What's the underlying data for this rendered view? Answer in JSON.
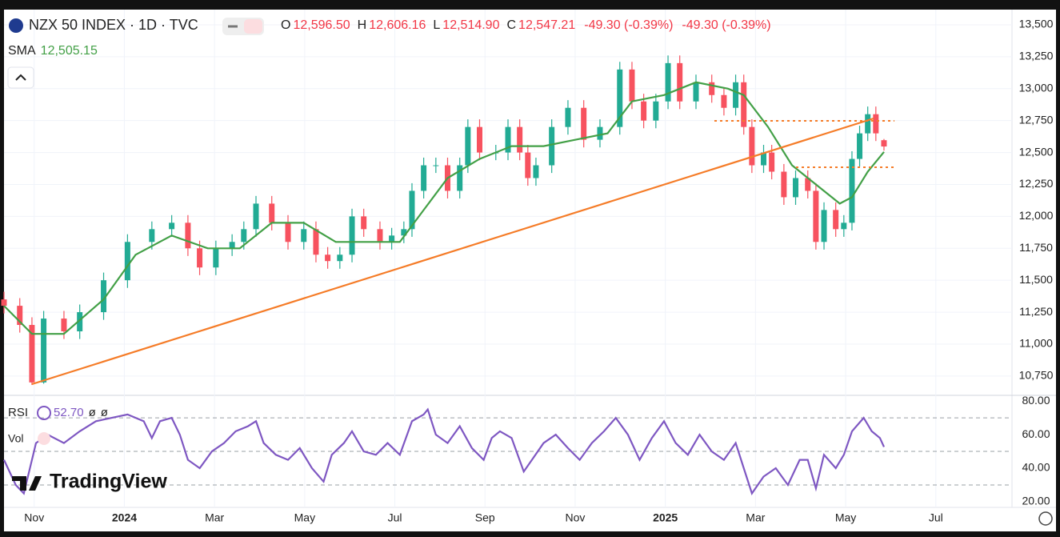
{
  "brand": "TradingView",
  "volume_label": "Vol",
  "chart_data": [
    {
      "type": "candlestick",
      "title": "NZX 50 INDEX · 1D · TVC",
      "legend": {
        "open_label": "O",
        "open": "12,596.50",
        "high_label": "H",
        "high": "12,606.16",
        "low_label": "L",
        "low": "12,514.90",
        "close_label": "C",
        "close": "12,547.21",
        "change": "-49.30 (-0.39%)",
        "change_2": "-49.30 (-0.39%)"
      },
      "up_color": "#22ab94",
      "down_color": "#f7525f",
      "grid": true,
      "x": [
        -0.67,
        -0.32,
        -0.05,
        0.21,
        0.66,
        1.01,
        1.54,
        2.07,
        2.61,
        3.05,
        3.41,
        3.67,
        4.03,
        4.39,
        4.65,
        4.92,
        5.27,
        5.63,
        5.98,
        6.25,
        6.51,
        6.78,
        7.05,
        7.31,
        7.67,
        7.93,
        8.2,
        8.38,
        8.64,
        8.91,
        9.17,
        9.44,
        9.62,
        9.88,
        10.24,
        10.51,
        10.77,
        10.95,
        11.13,
        11.48,
        11.84,
        12.19,
        12.55,
        12.99,
        13.26,
        13.52,
        13.79,
        14.06,
        14.32,
        14.68,
        15.03,
        15.3,
        15.56,
        15.74,
        15.92,
        16.18,
        16.36,
        16.63,
        16.89,
        17.16,
        17.34,
        17.52,
        17.78,
        17.96,
        18.14,
        18.31,
        18.49,
        18.67,
        18.85
      ],
      "open": [
        11350,
        11300,
        11150,
        10700,
        11200,
        11100,
        11250,
        11500,
        11800,
        11900,
        11950,
        11750,
        11600,
        11750,
        11800,
        11900,
        12100,
        11950,
        11800,
        11900,
        11700,
        11650,
        11700,
        12000,
        11900,
        11800,
        11850,
        11900,
        12200,
        12400,
        12400,
        12200,
        12400,
        12700,
        12500,
        12500,
        12700,
        12500,
        12300,
        12400,
        12700,
        12850,
        12600,
        12700,
        13150,
        12900,
        12750,
        12900,
        13200,
        12900,
        13050,
        12950,
        12850,
        13050,
        12700,
        12400,
        12500,
        12350,
        12150,
        12300,
        12200,
        11800,
        12050,
        11900,
        11950,
        12450,
        12650,
        12800,
        12596.5
      ],
      "high": [
        11410,
        11360,
        11210,
        11260,
        11260,
        11310,
        11560,
        11860,
        11960,
        12010,
        12010,
        11810,
        11810,
        11860,
        11960,
        12160,
        12160,
        12010,
        11960,
        11960,
        11760,
        11760,
        12060,
        12060,
        11960,
        11910,
        11960,
        12260,
        12460,
        12460,
        12460,
        12460,
        12760,
        12760,
        12560,
        12760,
        12760,
        12560,
        12460,
        12760,
        12910,
        12910,
        12760,
        13210,
        13210,
        12960,
        12960,
        13260,
        13260,
        13110,
        13110,
        13010,
        13110,
        13110,
        12760,
        12560,
        12560,
        12410,
        12360,
        12360,
        12260,
        12110,
        12110,
        12010,
        12510,
        12710,
        12860,
        12860,
        12606.16
      ],
      "low": [
        11240,
        11090,
        10680,
        10690,
        11040,
        11040,
        11190,
        11440,
        11740,
        11840,
        11690,
        11540,
        11540,
        11690,
        11740,
        11840,
        11890,
        11740,
        11740,
        11640,
        11590,
        11590,
        11640,
        11840,
        11740,
        11740,
        11790,
        11840,
        12140,
        12340,
        12140,
        12140,
        12340,
        12440,
        12440,
        12440,
        12440,
        12240,
        12240,
        12340,
        12640,
        12540,
        12540,
        12640,
        12840,
        12690,
        12690,
        12840,
        12840,
        12840,
        12890,
        12790,
        12790,
        12640,
        12340,
        12340,
        12290,
        12090,
        12090,
        12140,
        11740,
        11740,
        11840,
        11840,
        11890,
        12390,
        12590,
        12590,
        12514.9
      ],
      "close": [
        11300,
        11150,
        10700,
        11200,
        11100,
        11250,
        11500,
        11800,
        11900,
        11950,
        11750,
        11600,
        11750,
        11800,
        11900,
        12100,
        11950,
        11800,
        11900,
        11700,
        11650,
        11700,
        12000,
        11900,
        11800,
        11850,
        11900,
        12200,
        12400,
        12400,
        12200,
        12400,
        12700,
        12500,
        12500,
        12700,
        12500,
        12300,
        12400,
        12700,
        12850,
        12600,
        12700,
        13150,
        12900,
        12750,
        12900,
        13200,
        12900,
        13050,
        12950,
        12850,
        13050,
        12700,
        12400,
        12500,
        12350,
        12150,
        12300,
        12200,
        11800,
        12050,
        11900,
        11950,
        12450,
        12650,
        12800,
        12650,
        12547.21
      ],
      "sma": {
        "name": "SMA",
        "value_label": "12,505.15",
        "color": "#43a047",
        "x": [
          -0.67,
          -0.05,
          0.66,
          1.54,
          2.25,
          3.05,
          3.85,
          4.56,
          5.27,
          5.98,
          6.69,
          7.4,
          8.11,
          8.64,
          9.17,
          9.88,
          10.59,
          11.3,
          12.01,
          12.72,
          13.26,
          13.97,
          14.68,
          15.39,
          15.74,
          16.28,
          16.81,
          17.34,
          17.87,
          18.14,
          18.49,
          18.85
        ],
        "values": [
          11300,
          11080,
          11080,
          11350,
          11700,
          11850,
          11750,
          11750,
          11950,
          11950,
          11800,
          11800,
          11800,
          12050,
          12300,
          12450,
          12550,
          12550,
          12600,
          12650,
          12900,
          12950,
          13050,
          13000,
          12950,
          12700,
          12400,
          12250,
          12100,
          12150,
          12350,
          12505.15
        ]
      },
      "xlim": [
        -0.67,
        21.69
      ],
      "xticks": [
        {
          "value": 0,
          "label": "Nov"
        },
        {
          "value": 2,
          "label": "2024"
        },
        {
          "value": 4,
          "label": "Mar"
        },
        {
          "value": 6,
          "label": "May"
        },
        {
          "value": 8,
          "label": "Jul"
        },
        {
          "value": 10,
          "label": "Sep"
        },
        {
          "value": 12,
          "label": "Nov"
        },
        {
          "value": 14,
          "label": "2025"
        },
        {
          "value": 16,
          "label": "Mar"
        },
        {
          "value": 18,
          "label": "May"
        },
        {
          "value": 20,
          "label": "Jul"
        }
      ],
      "ylim": [
        10605,
        13619
      ],
      "yticks": [
        {
          "value": 10750,
          "label": "10,750"
        },
        {
          "value": 11000,
          "label": "11,000"
        },
        {
          "value": 11250,
          "label": "11,250"
        },
        {
          "value": 11500,
          "label": "11,500"
        },
        {
          "value": 11750,
          "label": "11,750"
        },
        {
          "value": 12000,
          "label": "12,000"
        },
        {
          "value": 12250,
          "label": "12,250"
        },
        {
          "value": 12500,
          "label": "12,500"
        },
        {
          "value": 12750,
          "label": "12,750"
        },
        {
          "value": 13000,
          "label": "13,000"
        },
        {
          "value": 13250,
          "label": "13,250"
        },
        {
          "value": 13500,
          "label": "13,500"
        }
      ]
    },
    {
      "type": "line",
      "name": "RSI",
      "value_label": "52.70",
      "extra_labels": [
        "ø",
        "ø"
      ],
      "color": "#7e57c2",
      "x": [
        -0.67,
        -0.41,
        -0.23,
        0.04,
        0.3,
        0.66,
        1.01,
        1.37,
        1.72,
        2.07,
        2.43,
        2.61,
        2.79,
        3.05,
        3.23,
        3.41,
        3.67,
        3.94,
        4.21,
        4.47,
        4.74,
        4.92,
        5.09,
        5.36,
        5.63,
        5.89,
        6.16,
        6.42,
        6.6,
        6.87,
        7.05,
        7.31,
        7.58,
        7.84,
        8.11,
        8.38,
        8.64,
        8.73,
        8.91,
        9.17,
        9.44,
        9.71,
        9.97,
        10.15,
        10.33,
        10.59,
        10.86,
        11.04,
        11.3,
        11.57,
        11.84,
        12.1,
        12.37,
        12.64,
        12.9,
        13.17,
        13.43,
        13.7,
        13.97,
        14.23,
        14.5,
        14.76,
        15.03,
        15.3,
        15.56,
        15.74,
        15.92,
        16.18,
        16.45,
        16.72,
        16.98,
        17.16,
        17.34,
        17.52,
        17.78,
        17.96,
        18.14,
        18.4,
        18.58,
        18.76,
        18.85
      ],
      "values": [
        45,
        30,
        25,
        55,
        60,
        55,
        62,
        68,
        70,
        72,
        68,
        58,
        68,
        70,
        60,
        45,
        40,
        50,
        55,
        62,
        65,
        68,
        55,
        48,
        45,
        52,
        40,
        32,
        48,
        55,
        62,
        50,
        48,
        55,
        48,
        68,
        72,
        75,
        60,
        55,
        65,
        52,
        45,
        58,
        62,
        58,
        38,
        45,
        55,
        60,
        52,
        45,
        55,
        62,
        70,
        60,
        45,
        58,
        68,
        55,
        48,
        60,
        50,
        45,
        55,
        40,
        25,
        35,
        40,
        30,
        45,
        45,
        28,
        48,
        40,
        48,
        62,
        70,
        62,
        58,
        52.7
      ],
      "ylim": [
        16.2,
        82.9
      ],
      "yticks": [
        {
          "value": 80,
          "label": "80.00"
        },
        {
          "value": 60,
          "label": "60.00"
        },
        {
          "value": 40,
          "label": "40.00"
        },
        {
          "value": 20,
          "label": "20.00"
        }
      ],
      "levels": [
        70,
        50,
        30
      ]
    }
  ]
}
